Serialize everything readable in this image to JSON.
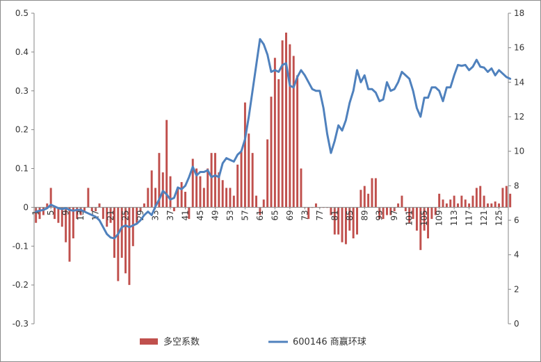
{
  "chart_data": {
    "type": "bar+line",
    "title": "",
    "x": {
      "start": 1,
      "end": 127,
      "tick_labels": [
        "1",
        "5",
        "9",
        "13",
        "17",
        "21",
        "25",
        "29",
        "33",
        "37",
        "41",
        "45",
        "49",
        "53",
        "57",
        "61",
        "65",
        "69",
        "73",
        "77",
        "81",
        "85",
        "89",
        "93",
        "97",
        "101",
        "105",
        "109",
        "113",
        "117",
        "121",
        "125"
      ]
    },
    "y_left": {
      "range": [
        -0.3,
        0.5
      ],
      "ticks": [
        "-0.3",
        "-0.2",
        "-0.1",
        "0",
        "0.1",
        "0.2",
        "0.3",
        "0.4",
        "0.5"
      ]
    },
    "y_right": {
      "range": [
        0,
        18
      ],
      "ticks": [
        "0",
        "2",
        "4",
        "6",
        "8",
        "10",
        "12",
        "14",
        "16",
        "18"
      ]
    },
    "legend": {
      "placement": "bottom"
    },
    "colors": {
      "bar": "#c0504d",
      "line": "#4f81bd"
    },
    "series": [
      {
        "name": "多空系数",
        "type": "bar",
        "axis": "left",
        "values": [
          -0.04,
          -0.03,
          -0.02,
          0.01,
          0.05,
          -0.03,
          -0.04,
          -0.05,
          -0.09,
          -0.14,
          -0.08,
          -0.03,
          -0.02,
          -0.01,
          0.05,
          -0.01,
          -0.01,
          0.01,
          -0.03,
          -0.05,
          -0.04,
          -0.13,
          -0.19,
          -0.13,
          -0.17,
          -0.2,
          -0.1,
          -0.04,
          -0.01,
          0.01,
          0.05,
          0.095,
          0.05,
          0.14,
          0.09,
          0.225,
          0.08,
          -0.01,
          0.05,
          0.065,
          0.04,
          -0.03,
          0.125,
          0.1,
          0.08,
          0.05,
          0.1,
          0.14,
          0.14,
          0.09,
          0.07,
          0.05,
          0.05,
          0.03,
          0.11,
          0.145,
          0.27,
          0.19,
          0.14,
          0.03,
          -0.02,
          0.02,
          0.175,
          0.285,
          0.385,
          0.33,
          0.43,
          0.45,
          0.42,
          0.39,
          0.34,
          0.1,
          0.0,
          -0.03,
          0.0,
          0.01,
          0.0,
          0.0,
          0.0,
          -0.02,
          -0.07,
          -0.07,
          -0.09,
          -0.095,
          -0.06,
          -0.08,
          -0.07,
          0.045,
          0.055,
          0.035,
          0.075,
          0.075,
          -0.03,
          -0.03,
          -0.02,
          -0.02,
          -0.01,
          0.01,
          0.03,
          -0.01,
          -0.04,
          -0.03,
          -0.06,
          -0.11,
          -0.06,
          -0.08,
          -0.03,
          -0.02,
          0.035,
          0.02,
          0.01,
          0.02,
          0.03,
          0.01,
          0.03,
          0.02,
          0.01,
          0.03,
          0.05,
          0.055,
          0.03,
          0.01,
          0.01,
          0.015,
          0.01,
          0.05,
          0.055,
          0.035
        ]
      },
      {
        "name": "600146 商赢环球",
        "type": "line",
        "axis": "right",
        "values": [
          6.5,
          6.55,
          6.6,
          6.7,
          6.9,
          6.8,
          6.7,
          6.65,
          6.7,
          6.6,
          6.55,
          6.6,
          6.6,
          6.5,
          6.4,
          6.3,
          6.2,
          6.0,
          5.6,
          5.2,
          5.0,
          4.95,
          5.2,
          5.6,
          5.7,
          5.6,
          5.7,
          5.8,
          6.0,
          6.3,
          6.5,
          6.3,
          6.8,
          7.2,
          7.7,
          7.5,
          7.2,
          7.3,
          7.9,
          7.8,
          8.0,
          8.5,
          9.1,
          8.6,
          8.8,
          8.8,
          8.9,
          8.5,
          8.6,
          8.5,
          9.3,
          9.6,
          9.5,
          9.4,
          9.8,
          10.0,
          10.7,
          12.0,
          13.5,
          15.0,
          16.5,
          16.2,
          15.6,
          14.6,
          14.7,
          14.6,
          15.0,
          15.1,
          13.8,
          13.7,
          14.3,
          14.7,
          14.4,
          14.0,
          13.6,
          13.5,
          13.5,
          12.5,
          11.0,
          9.9,
          10.6,
          11.5,
          11.2,
          11.8,
          12.8,
          13.5,
          14.7,
          14.0,
          14.4,
          13.6,
          13.6,
          13.4,
          12.9,
          13.0,
          14.0,
          13.5,
          13.6,
          14.0,
          14.6,
          14.4,
          14.2,
          13.5,
          12.5,
          12.0,
          13.1,
          13.1,
          13.7,
          13.7,
          13.5,
          12.9,
          13.7,
          13.7,
          14.4,
          15.0,
          14.95,
          15.0,
          14.7,
          14.9,
          15.3,
          14.9,
          14.85,
          14.6,
          14.8,
          14.4,
          14.7,
          14.5,
          14.3,
          14.2
        ]
      }
    ]
  }
}
